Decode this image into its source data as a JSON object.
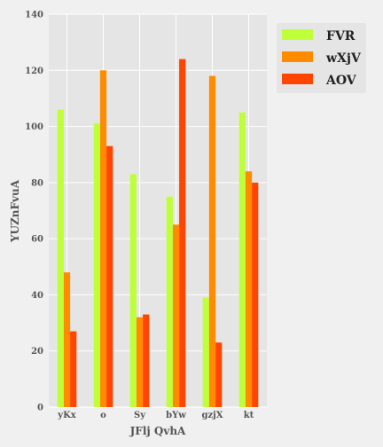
{
  "chart_data": {
    "type": "bar",
    "title": "",
    "xlabel": "JFlj QvhA",
    "ylabel": "YUZnFvuA",
    "categories": [
      "yKx",
      "o",
      "Sy",
      "bYw",
      "gzjX",
      "kt"
    ],
    "series": [
      {
        "name": "FVR",
        "color": "#bfff3a",
        "values": [
          106,
          101,
          83,
          75,
          39,
          105
        ]
      },
      {
        "name": "wXjV",
        "color": "#ff8c00",
        "values": [
          48,
          120,
          32,
          65,
          118,
          84
        ]
      },
      {
        "name": "AOV",
        "color": "#ff4500",
        "values": [
          27,
          93,
          33,
          124,
          23,
          80
        ]
      }
    ],
    "ylim": [
      0,
      140
    ],
    "yticks": [
      0,
      20,
      40,
      60,
      80,
      100,
      120,
      140
    ],
    "grid": true,
    "legend_position": "top-right",
    "plot_background": "#e5e5e5",
    "grid_color": "#ffffff"
  }
}
